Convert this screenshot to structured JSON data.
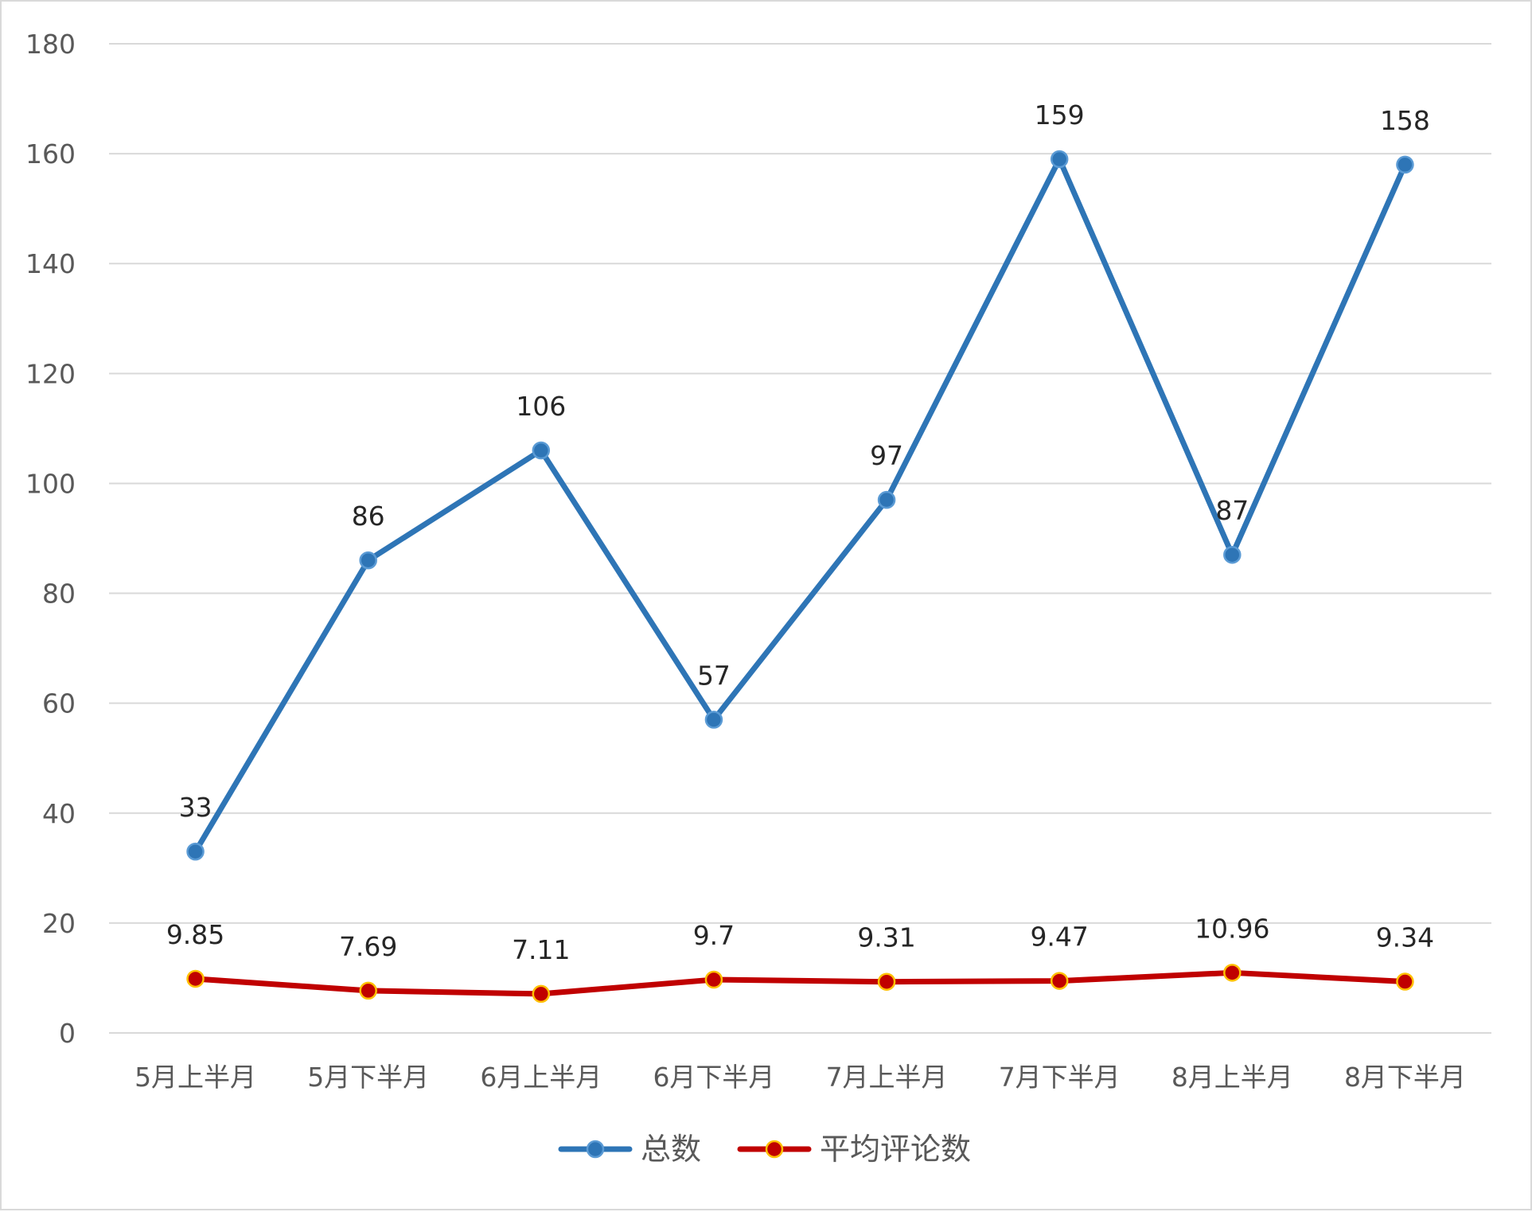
{
  "chart_data": {
    "type": "line",
    "title": "",
    "xlabel": "",
    "ylabel": "",
    "categories": [
      "5月上半月",
      "5月下半月",
      "6月上半月",
      "6月下半月",
      "7月上半月",
      "7月下半月",
      "8月上半月",
      "8月下半月"
    ],
    "ylim": [
      0,
      180
    ],
    "y_ticks": [
      0,
      20,
      40,
      60,
      80,
      100,
      120,
      140,
      160,
      180
    ],
    "grid": true,
    "legend_position": "bottom",
    "series": [
      {
        "name": "总数",
        "color": "#2e75b6",
        "marker": "circle",
        "values": [
          33,
          86,
          106,
          57,
          97,
          159,
          87,
          158
        ],
        "labels": [
          "33",
          "86",
          "106",
          "57",
          "97",
          "159",
          "87",
          "158"
        ]
      },
      {
        "name": "平均评论数",
        "color": "#c00000",
        "marker": "circle",
        "values": [
          9.85,
          7.69,
          7.11,
          9.7,
          9.31,
          9.47,
          10.96,
          9.34
        ],
        "labels": [
          "9.85",
          "7.69",
          "7.11",
          "9.7",
          "9.31",
          "9.47",
          "10.96",
          "9.34"
        ]
      }
    ]
  }
}
